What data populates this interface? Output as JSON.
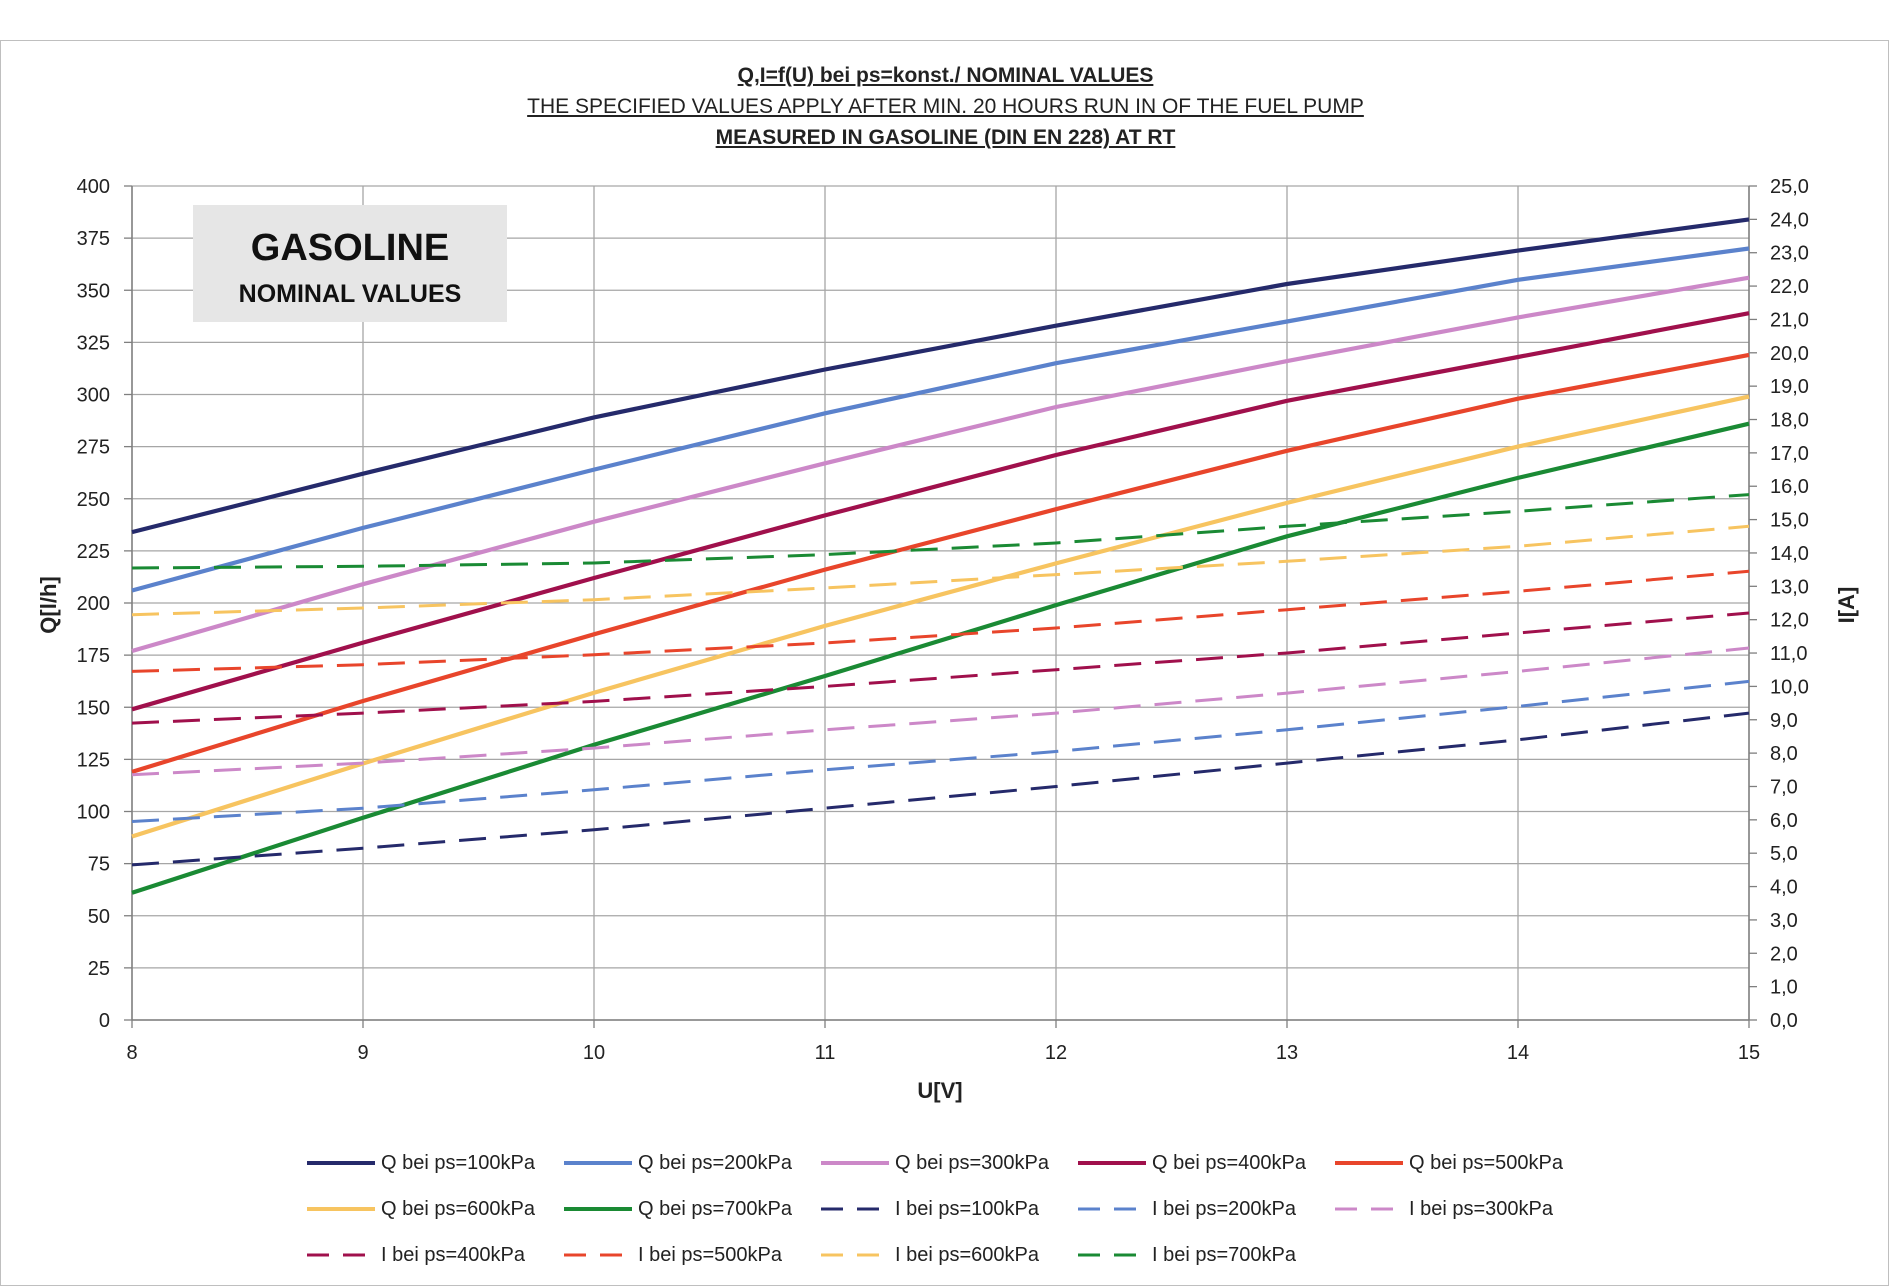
{
  "titles": {
    "line1": "Q,I=f(U) bei ps=konst./  NOMINAL VALUES",
    "line2": "THE SPECIFIED VALUES APPLY AFTER MIN. 20 HOURS RUN IN OF THE FUEL PUMP",
    "line3": "MEASURED IN GASOLINE (DIN EN 228) AT RT"
  },
  "annotation": {
    "title": "GASOLINE",
    "subtitle": "NOMINAL VALUES"
  },
  "chart_data": {
    "type": "line",
    "xlabel": "U[V]",
    "ylabel": "Q[l/h]",
    "y2label": "I[A]",
    "xlim": [
      8,
      15
    ],
    "ylim": [
      0,
      400
    ],
    "y2lim": [
      0,
      25
    ],
    "xticks": [
      8,
      9,
      10,
      11,
      12,
      13,
      14,
      15
    ],
    "yticks": [
      0,
      25,
      50,
      75,
      100,
      125,
      150,
      175,
      200,
      225,
      250,
      275,
      300,
      325,
      350,
      375,
      400
    ],
    "y2ticks": [
      "0,0",
      "1,0",
      "2,0",
      "3,0",
      "4,0",
      "5,0",
      "6,0",
      "7,0",
      "8,0",
      "9,0",
      "10,0",
      "11,0",
      "12,0",
      "13,0",
      "14,0",
      "15,0",
      "16,0",
      "17,0",
      "18,0",
      "19,0",
      "20,0",
      "21,0",
      "22,0",
      "23,0",
      "24,0",
      "25,0"
    ],
    "grid": true,
    "legend_position": "bottom",
    "x": [
      8,
      9,
      10,
      11,
      12,
      13,
      14,
      15
    ],
    "series": [
      {
        "name": "Q  bei ps=100kPa",
        "axis": "left",
        "style": "solid",
        "color": "#252a6b",
        "values": [
          234,
          262,
          289,
          312,
          333,
          353,
          369,
          384
        ]
      },
      {
        "name": "Q  bei ps=200kPa",
        "axis": "left",
        "style": "solid",
        "color": "#5b82cc",
        "values": [
          206,
          236,
          264,
          291,
          315,
          335,
          355,
          370
        ]
      },
      {
        "name": "Q  bei ps=300kPa",
        "axis": "left",
        "style": "solid",
        "color": "#cc88c8",
        "values": [
          177,
          209,
          239,
          267,
          294,
          316,
          337,
          356
        ]
      },
      {
        "name": "Q  bei ps=400kPa",
        "axis": "left",
        "style": "solid",
        "color": "#a0104c",
        "values": [
          149,
          181,
          212,
          242,
          271,
          297,
          318,
          339
        ]
      },
      {
        "name": "Q  bei ps=500kPa",
        "axis": "left",
        "style": "solid",
        "color": "#e8452b",
        "values": [
          119,
          153,
          185,
          216,
          245,
          273,
          298,
          319
        ]
      },
      {
        "name": "Q  bei ps=600kPa",
        "axis": "left",
        "style": "solid",
        "color": "#f7c460",
        "values": [
          88,
          123,
          157,
          189,
          219,
          248,
          275,
          299
        ]
      },
      {
        "name": "Q  bei ps=700kPa",
        "axis": "left",
        "style": "solid",
        "color": "#1a8a34",
        "values": [
          61,
          97,
          132,
          165,
          199,
          232,
          260,
          286
        ]
      },
      {
        "name": "I  bei ps=100kPa",
        "axis": "right",
        "style": "dashed",
        "color": "#252a6b",
        "values": [
          4.65,
          5.15,
          5.7,
          6.35,
          7.0,
          7.7,
          8.4,
          9.2
        ]
      },
      {
        "name": "I  bei ps=200kPa",
        "axis": "right",
        "style": "dashed",
        "color": "#5b82cc",
        "values": [
          5.95,
          6.35,
          6.9,
          7.5,
          8.05,
          8.7,
          9.4,
          10.15
        ]
      },
      {
        "name": "I  bei ps=300kPa",
        "axis": "right",
        "style": "dashed",
        "color": "#cc88c8",
        "values": [
          7.35,
          7.7,
          8.15,
          8.7,
          9.2,
          9.8,
          10.45,
          11.15
        ]
      },
      {
        "name": "I  bei ps=400kPa",
        "axis": "right",
        "style": "dashed",
        "color": "#a0104c",
        "values": [
          8.9,
          9.2,
          9.55,
          10.0,
          10.5,
          11.0,
          11.6,
          12.2
        ]
      },
      {
        "name": "I  bei ps=500kPa",
        "axis": "right",
        "style": "dashed",
        "color": "#e8452b",
        "values": [
          10.45,
          10.65,
          10.95,
          11.3,
          11.75,
          12.3,
          12.85,
          13.45
        ]
      },
      {
        "name": "I  bei ps=600kPa",
        "axis": "right",
        "style": "dashed",
        "color": "#f7c460",
        "values": [
          12.15,
          12.35,
          12.6,
          12.95,
          13.35,
          13.75,
          14.2,
          14.8
        ]
      },
      {
        "name": "I  bei ps=700kPa",
        "axis": "right",
        "style": "dashed",
        "color": "#1a8a34",
        "values": [
          13.55,
          13.6,
          13.7,
          13.95,
          14.3,
          14.8,
          15.25,
          15.75
        ]
      }
    ]
  }
}
